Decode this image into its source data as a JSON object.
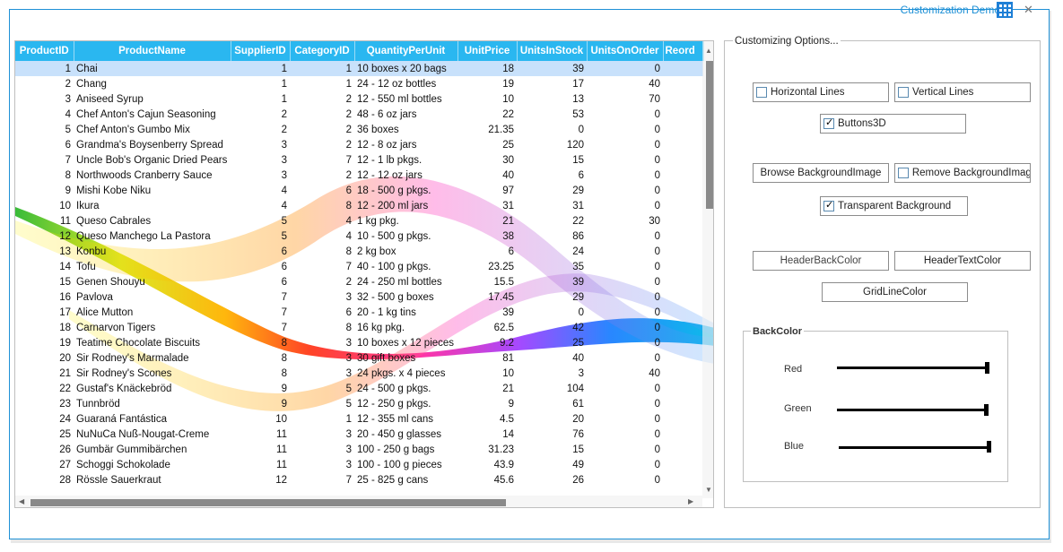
{
  "title": "Customization Demo",
  "grid": {
    "columns": [
      {
        "label": "ProductID",
        "w": 65
      },
      {
        "label": "ProductName",
        "w": 175
      },
      {
        "label": "SupplierID",
        "w": 66
      },
      {
        "label": "CategoryID",
        "w": 72
      },
      {
        "label": "QuantityPerUnit",
        "w": 115
      },
      {
        "label": "UnitPrice",
        "w": 66
      },
      {
        "label": "UnitsInStock",
        "w": 78
      },
      {
        "label": "UnitsOnOrder",
        "w": 85
      },
      {
        "label": "Reord",
        "w": 45
      }
    ],
    "rows": [
      [
        "1",
        "Chai",
        "1",
        "1",
        "10 boxes x 20 bags",
        "18",
        "39",
        "0"
      ],
      [
        "2",
        "Chang",
        "1",
        "1",
        "24 - 12 oz bottles",
        "19",
        "17",
        "40"
      ],
      [
        "3",
        "Aniseed Syrup",
        "1",
        "2",
        "12 - 550 ml bottles",
        "10",
        "13",
        "70"
      ],
      [
        "4",
        "Chef Anton's Cajun Seasoning",
        "2",
        "2",
        "48 - 6 oz jars",
        "22",
        "53",
        "0"
      ],
      [
        "5",
        "Chef Anton's Gumbo Mix",
        "2",
        "2",
        "36 boxes",
        "21.35",
        "0",
        "0"
      ],
      [
        "6",
        "Grandma's Boysenberry Spread",
        "3",
        "2",
        "12 - 8 oz jars",
        "25",
        "120",
        "0"
      ],
      [
        "7",
        "Uncle Bob's Organic Dried Pears",
        "3",
        "7",
        "12 - 1 lb pkgs.",
        "30",
        "15",
        "0"
      ],
      [
        "8",
        "Northwoods Cranberry Sauce",
        "3",
        "2",
        "12 - 12 oz jars",
        "40",
        "6",
        "0"
      ],
      [
        "9",
        "Mishi Kobe Niku",
        "4",
        "6",
        "18 - 500 g pkgs.",
        "97",
        "29",
        "0"
      ],
      [
        "10",
        "Ikura",
        "4",
        "8",
        "12 - 200 ml jars",
        "31",
        "31",
        "0"
      ],
      [
        "11",
        "Queso Cabrales",
        "5",
        "4",
        "1 kg pkg.",
        "21",
        "22",
        "30"
      ],
      [
        "12",
        "Queso Manchego La Pastora",
        "5",
        "4",
        "10 - 500 g pkgs.",
        "38",
        "86",
        "0"
      ],
      [
        "13",
        "Konbu",
        "6",
        "8",
        "2 kg box",
        "6",
        "24",
        "0"
      ],
      [
        "14",
        "Tofu",
        "6",
        "7",
        "40 - 100 g pkgs.",
        "23.25",
        "35",
        "0"
      ],
      [
        "15",
        "Genen Shouyu",
        "6",
        "2",
        "24 - 250 ml bottles",
        "15.5",
        "39",
        "0"
      ],
      [
        "16",
        "Pavlova",
        "7",
        "3",
        "32 - 500 g boxes",
        "17.45",
        "29",
        "0"
      ],
      [
        "17",
        "Alice Mutton",
        "7",
        "6",
        "20 - 1 kg tins",
        "39",
        "0",
        "0"
      ],
      [
        "18",
        "Carnarvon Tigers",
        "7",
        "8",
        "16 kg pkg.",
        "62.5",
        "42",
        "0"
      ],
      [
        "19",
        "Teatime Chocolate Biscuits",
        "8",
        "3",
        "10 boxes x 12 pieces",
        "9.2",
        "25",
        "0"
      ],
      [
        "20",
        "Sir Rodney's Marmalade",
        "8",
        "3",
        "30 gift boxes",
        "81",
        "40",
        "0"
      ],
      [
        "21",
        "Sir Rodney's Scones",
        "8",
        "3",
        "24 pkgs. x 4 pieces",
        "10",
        "3",
        "40"
      ],
      [
        "22",
        "Gustaf's Knäckebröd",
        "9",
        "5",
        "24 - 500 g pkgs.",
        "21",
        "104",
        "0"
      ],
      [
        "23",
        "Tunnbröd",
        "9",
        "5",
        "12 - 250 g pkgs.",
        "9",
        "61",
        "0"
      ],
      [
        "24",
        "Guaraná Fantástica",
        "10",
        "1",
        "12 - 355 ml cans",
        "4.5",
        "20",
        "0"
      ],
      [
        "25",
        "NuNuCa Nuß-Nougat-Creme",
        "11",
        "3",
        "20 - 450 g glasses",
        "14",
        "76",
        "0"
      ],
      [
        "26",
        "Gumbär Gummibärchen",
        "11",
        "3",
        "100 - 250 g bags",
        "31.23",
        "15",
        "0"
      ],
      [
        "27",
        "Schoggi Schokolade",
        "11",
        "3",
        "100 - 100 g pieces",
        "43.9",
        "49",
        "0"
      ],
      [
        "28",
        "Rössle Sauerkraut",
        "12",
        "7",
        "25 - 825 g cans",
        "45.6",
        "26",
        "0"
      ]
    ]
  },
  "options": {
    "group_label": "Customizing Options...",
    "horizontal_lines": "Horizontal Lines",
    "vertical_lines": "Vertical Lines",
    "buttons3d": "Buttons3D",
    "browse_bg": "Browse BackgroundImage",
    "remove_bg": "Remove BackgroundImag",
    "transparent_bg": "Transparent Background",
    "header_back_color": "HeaderBackColor",
    "header_text_color": "HeaderTextColor",
    "grid_line_color": "GridLineColor",
    "backcolor": {
      "label": "BackColor",
      "red": "Red",
      "green": "Green",
      "blue": "Blue"
    }
  },
  "colors": {
    "header_bg": "#2ab7f0",
    "accent": "#1e90d6"
  }
}
